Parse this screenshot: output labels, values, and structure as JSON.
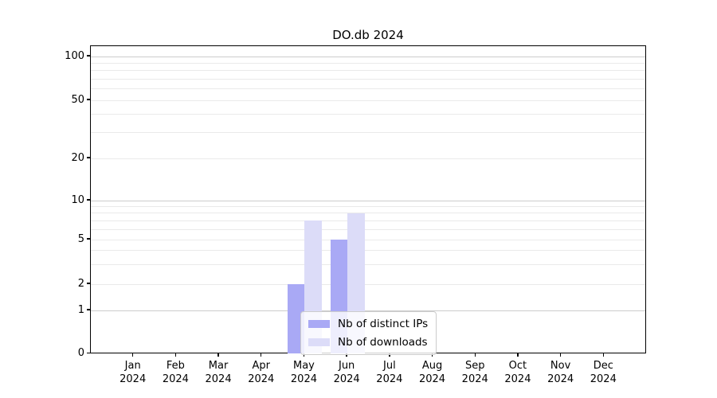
{
  "chart_data": {
    "type": "bar",
    "title": "DO.db 2024",
    "categories": [
      {
        "month": "Jan",
        "year": "2024"
      },
      {
        "month": "Feb",
        "year": "2024"
      },
      {
        "month": "Mar",
        "year": "2024"
      },
      {
        "month": "Apr",
        "year": "2024"
      },
      {
        "month": "May",
        "year": "2024"
      },
      {
        "month": "Jun",
        "year": "2024"
      },
      {
        "month": "Jul",
        "year": "2024"
      },
      {
        "month": "Aug",
        "year": "2024"
      },
      {
        "month": "Sep",
        "year": "2024"
      },
      {
        "month": "Oct",
        "year": "2024"
      },
      {
        "month": "Nov",
        "year": "2024"
      },
      {
        "month": "Dec",
        "year": "2024"
      }
    ],
    "series": [
      {
        "name": "Nb of distinct IPs",
        "color": "#a9a9f5",
        "values": [
          0,
          0,
          0,
          0,
          2,
          5,
          0,
          0,
          0,
          0,
          0,
          0
        ]
      },
      {
        "name": "Nb of downloads",
        "color": "#dcdcf8",
        "values": [
          0,
          0,
          0,
          0,
          7,
          8,
          0,
          0,
          0,
          0,
          0,
          0
        ]
      }
    ],
    "yaxis": {
      "scale": "symlog",
      "tick_labels": [
        "0",
        "1",
        "2",
        "5",
        "10",
        "20",
        "50",
        "100"
      ],
      "tick_values": [
        0,
        1,
        2,
        5,
        10,
        20,
        50,
        100
      ],
      "minor_grid_values": [
        3,
        4,
        6,
        7,
        8,
        9,
        30,
        40,
        60,
        70,
        80,
        90
      ],
      "major_grid_values": [
        1,
        10,
        100
      ],
      "ylim": [
        0,
        110
      ]
    },
    "grid": "horizontal",
    "legend_position": "lower center",
    "colors": {
      "major_grid": "#cccccc",
      "minor_grid": "#eaeaea",
      "axis": "#000000",
      "background": "#ffffff"
    }
  }
}
